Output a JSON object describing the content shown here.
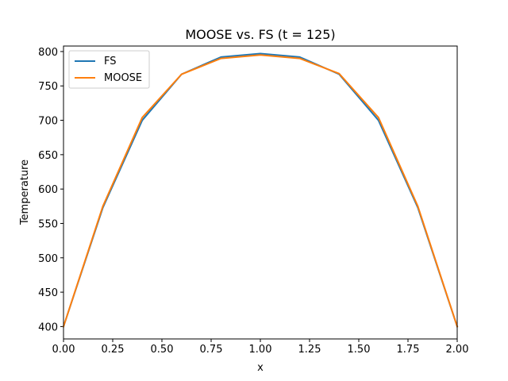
{
  "chart_data": {
    "type": "line",
    "title": "MOOSE vs. FS (t = 125)",
    "xlabel": "x",
    "ylabel": "Temperature",
    "xlim": [
      0.0,
      2.0
    ],
    "ylim": [
      382,
      808
    ],
    "xticks": [
      "0.00",
      "0.25",
      "0.50",
      "0.75",
      "1.00",
      "1.25",
      "1.50",
      "1.75",
      "2.00"
    ],
    "yticks": [
      "400",
      "450",
      "500",
      "550",
      "600",
      "650",
      "700",
      "750",
      "800"
    ],
    "grid": false,
    "legend_position": "top-left",
    "x": [
      0.0,
      0.2,
      0.4,
      0.6,
      0.8,
      1.0,
      1.2,
      1.4,
      1.6,
      1.8,
      2.0
    ],
    "series": [
      {
        "name": "FS",
        "color": "#1f77b4",
        "values": [
          400,
          573,
          700,
          767,
          792,
          797,
          792,
          767,
          700,
          573,
          400
        ]
      },
      {
        "name": "MOOSE",
        "color": "#ff7f0e",
        "values": [
          400,
          575,
          704,
          767,
          790,
          795,
          790,
          768,
          704,
          575,
          400
        ]
      }
    ]
  }
}
